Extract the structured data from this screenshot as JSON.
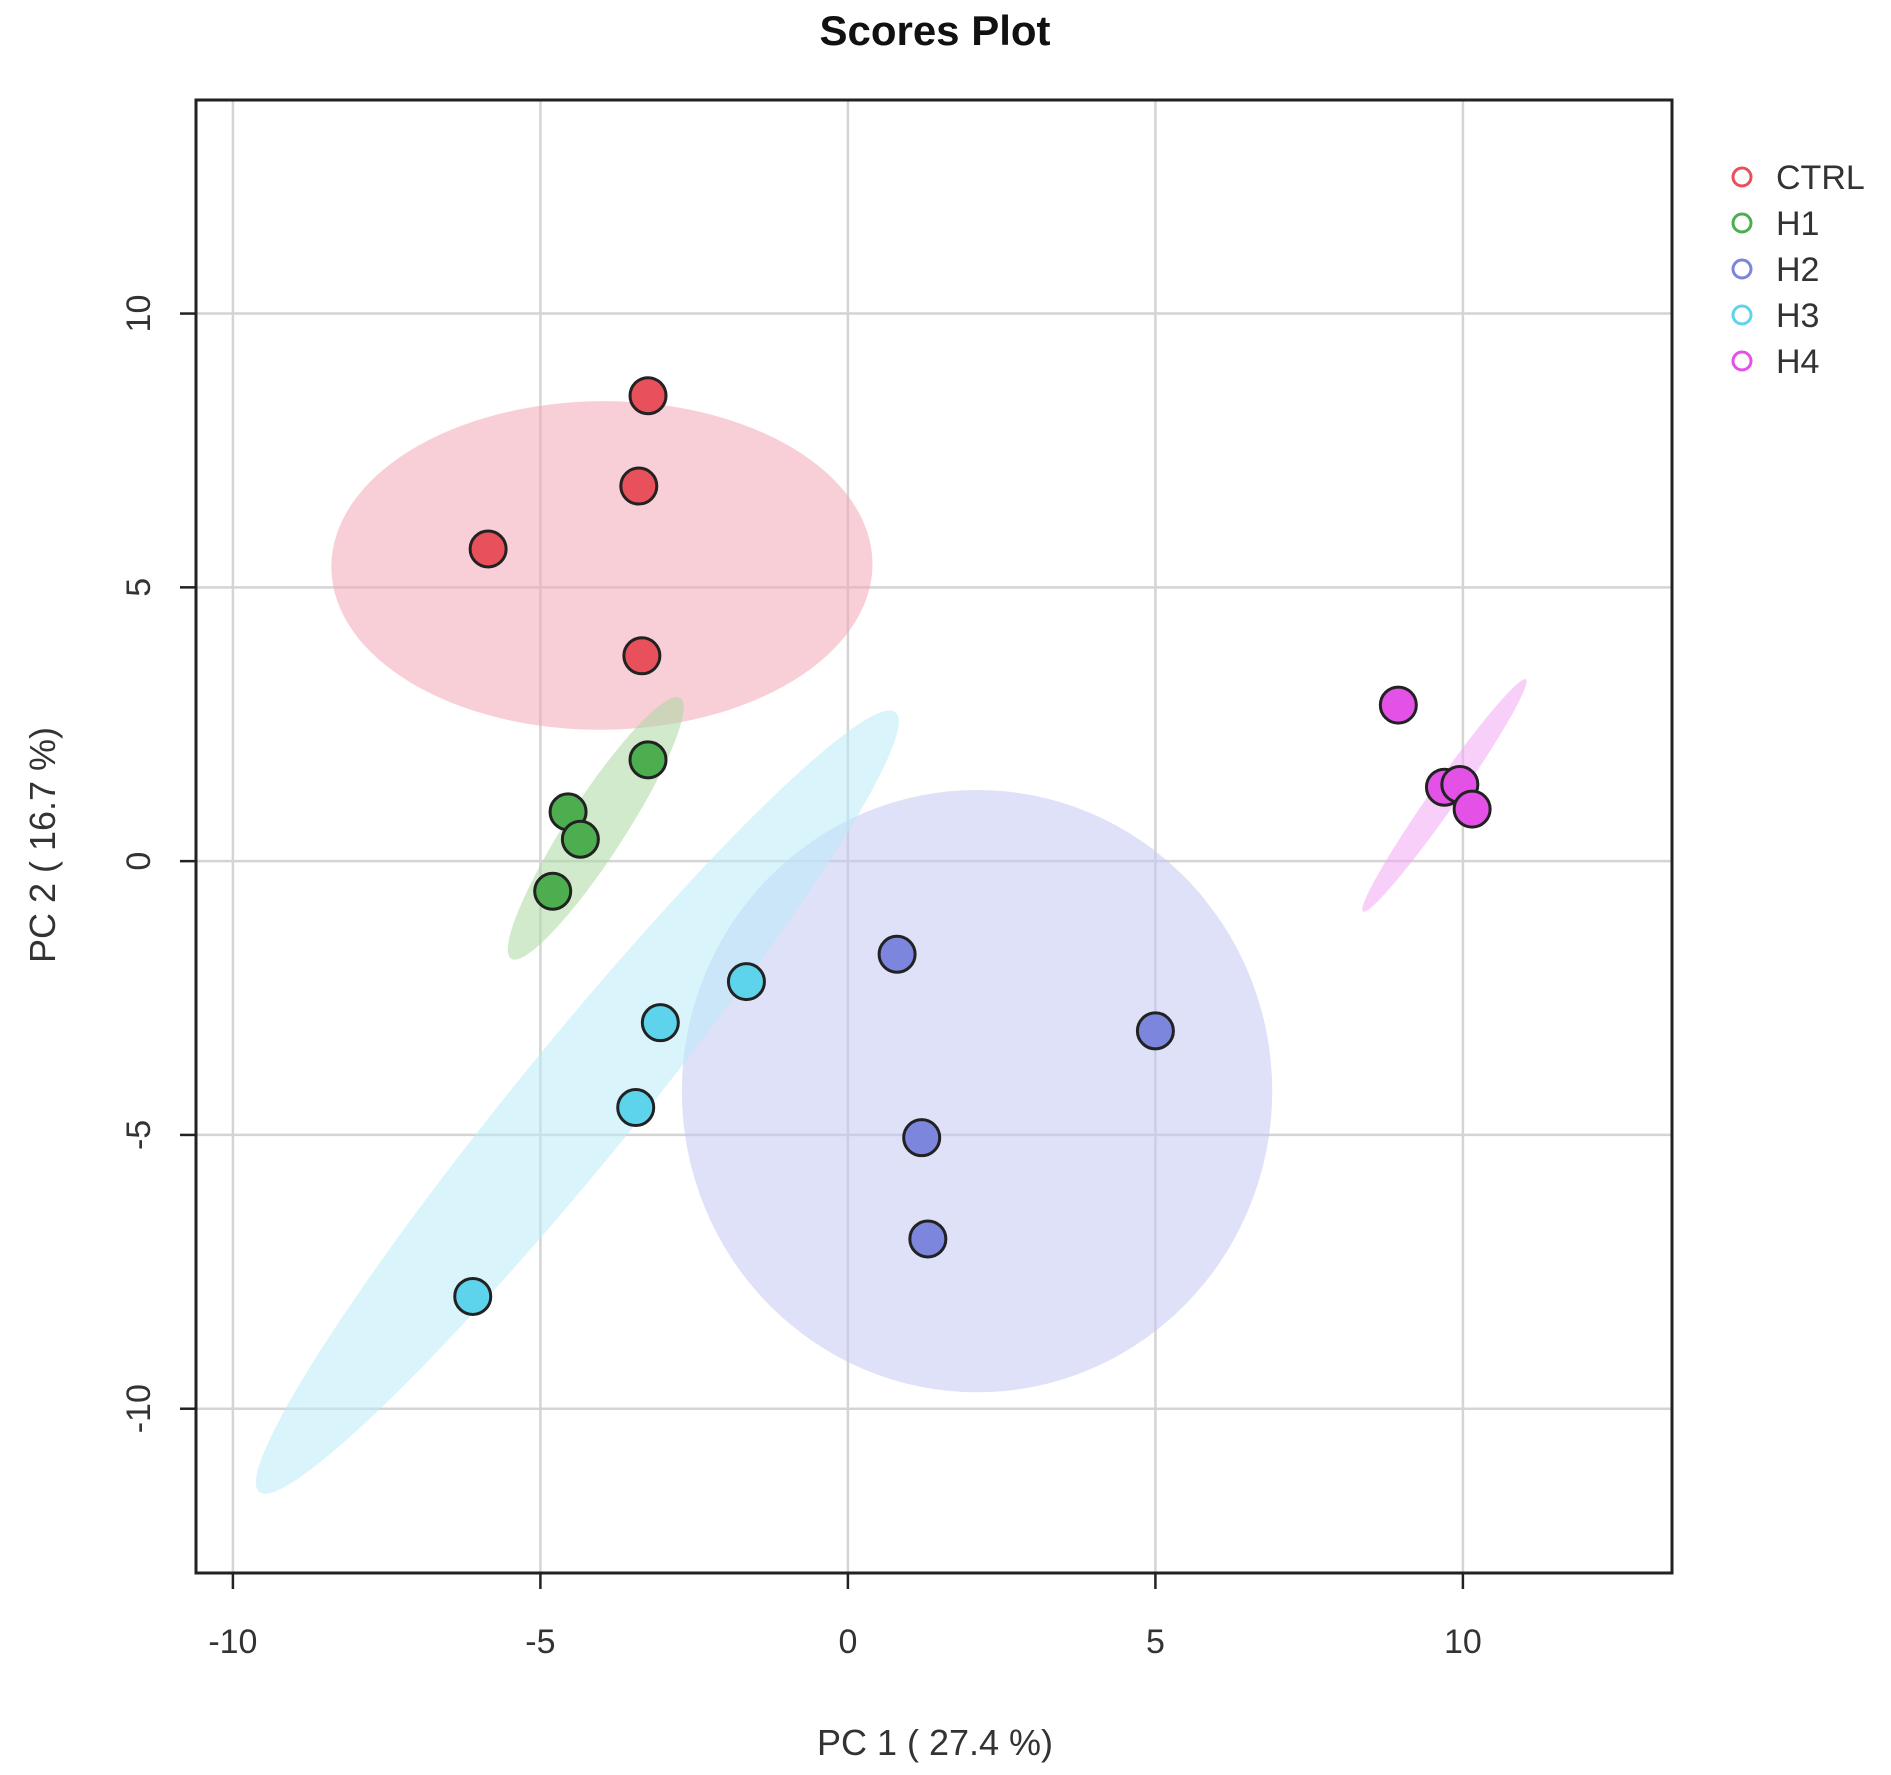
{
  "chart_data": {
    "type": "scatter",
    "title": "Scores Plot",
    "xlabel": "PC 1 ( 27.4 %)",
    "ylabel": "PC 2 ( 16.7 %)",
    "xlim": [
      -10.6,
      13.4
    ],
    "ylim": [
      -13.0,
      13.9
    ],
    "xticks": [
      -10,
      -5,
      0,
      5,
      10
    ],
    "yticks": [
      -10,
      -5,
      0,
      5,
      10
    ],
    "xtick_labels": [
      "-10",
      "-5",
      "0",
      "5",
      "10"
    ],
    "ytick_labels": [
      "-10",
      "-5",
      "0",
      "5",
      "10"
    ],
    "grid": true,
    "legend_position": "top-right-outside",
    "series": [
      {
        "name": "CTRL",
        "color": "#e8505b",
        "ellipse_color": "#f4a7b6",
        "points": [
          [
            -3.25,
            8.5
          ],
          [
            -3.4,
            6.85
          ],
          [
            -5.85,
            5.7
          ],
          [
            -3.35,
            3.75
          ]
        ],
        "ellipse": {
          "cx": -4.0,
          "cy": 5.4,
          "rx": 4.4,
          "ry": 3.0,
          "angle": 0.5
        }
      },
      {
        "name": "H1",
        "color": "#4cae4f",
        "ellipse_color": "#a9d8a0",
        "points": [
          [
            -3.25,
            1.85
          ],
          [
            -4.55,
            0.9
          ],
          [
            -4.35,
            0.4
          ],
          [
            -4.8,
            -0.55
          ]
        ],
        "ellipse": {
          "cx": -4.1,
          "cy": 0.6,
          "rx": 2.75,
          "ry": 0.48,
          "angle": 60
        }
      },
      {
        "name": "H2",
        "color": "#7b86dc",
        "ellipse_color": "#c5c9f2",
        "points": [
          [
            0.8,
            -1.7
          ],
          [
            5.0,
            -3.1
          ],
          [
            1.2,
            -5.05
          ],
          [
            1.3,
            -6.9
          ]
        ],
        "ellipse": {
          "cx": 2.1,
          "cy": -4.2,
          "rx": 4.8,
          "ry": 5.5,
          "angle": 0
        }
      },
      {
        "name": "H3",
        "color": "#5ed4ec",
        "ellipse_color": "#b9ebf7",
        "points": [
          [
            -1.65,
            -2.2
          ],
          [
            -3.05,
            -2.95
          ],
          [
            -3.45,
            -4.5
          ],
          [
            -6.1,
            -7.95
          ]
        ],
        "ellipse": {
          "cx": -4.4,
          "cy": -4.4,
          "rx": 8.8,
          "ry": 1.0,
          "angle": 54
        }
      },
      {
        "name": "H4",
        "color": "#e451e6",
        "ellipse_color": "#f2a7f4",
        "points": [
          [
            8.95,
            2.85
          ],
          [
            9.7,
            1.35
          ],
          [
            9.95,
            1.4
          ],
          [
            10.15,
            0.95
          ]
        ],
        "ellipse": {
          "cx": 9.7,
          "cy": 1.2,
          "rx": 2.5,
          "ry": 0.22,
          "angle": 58
        }
      }
    ]
  }
}
